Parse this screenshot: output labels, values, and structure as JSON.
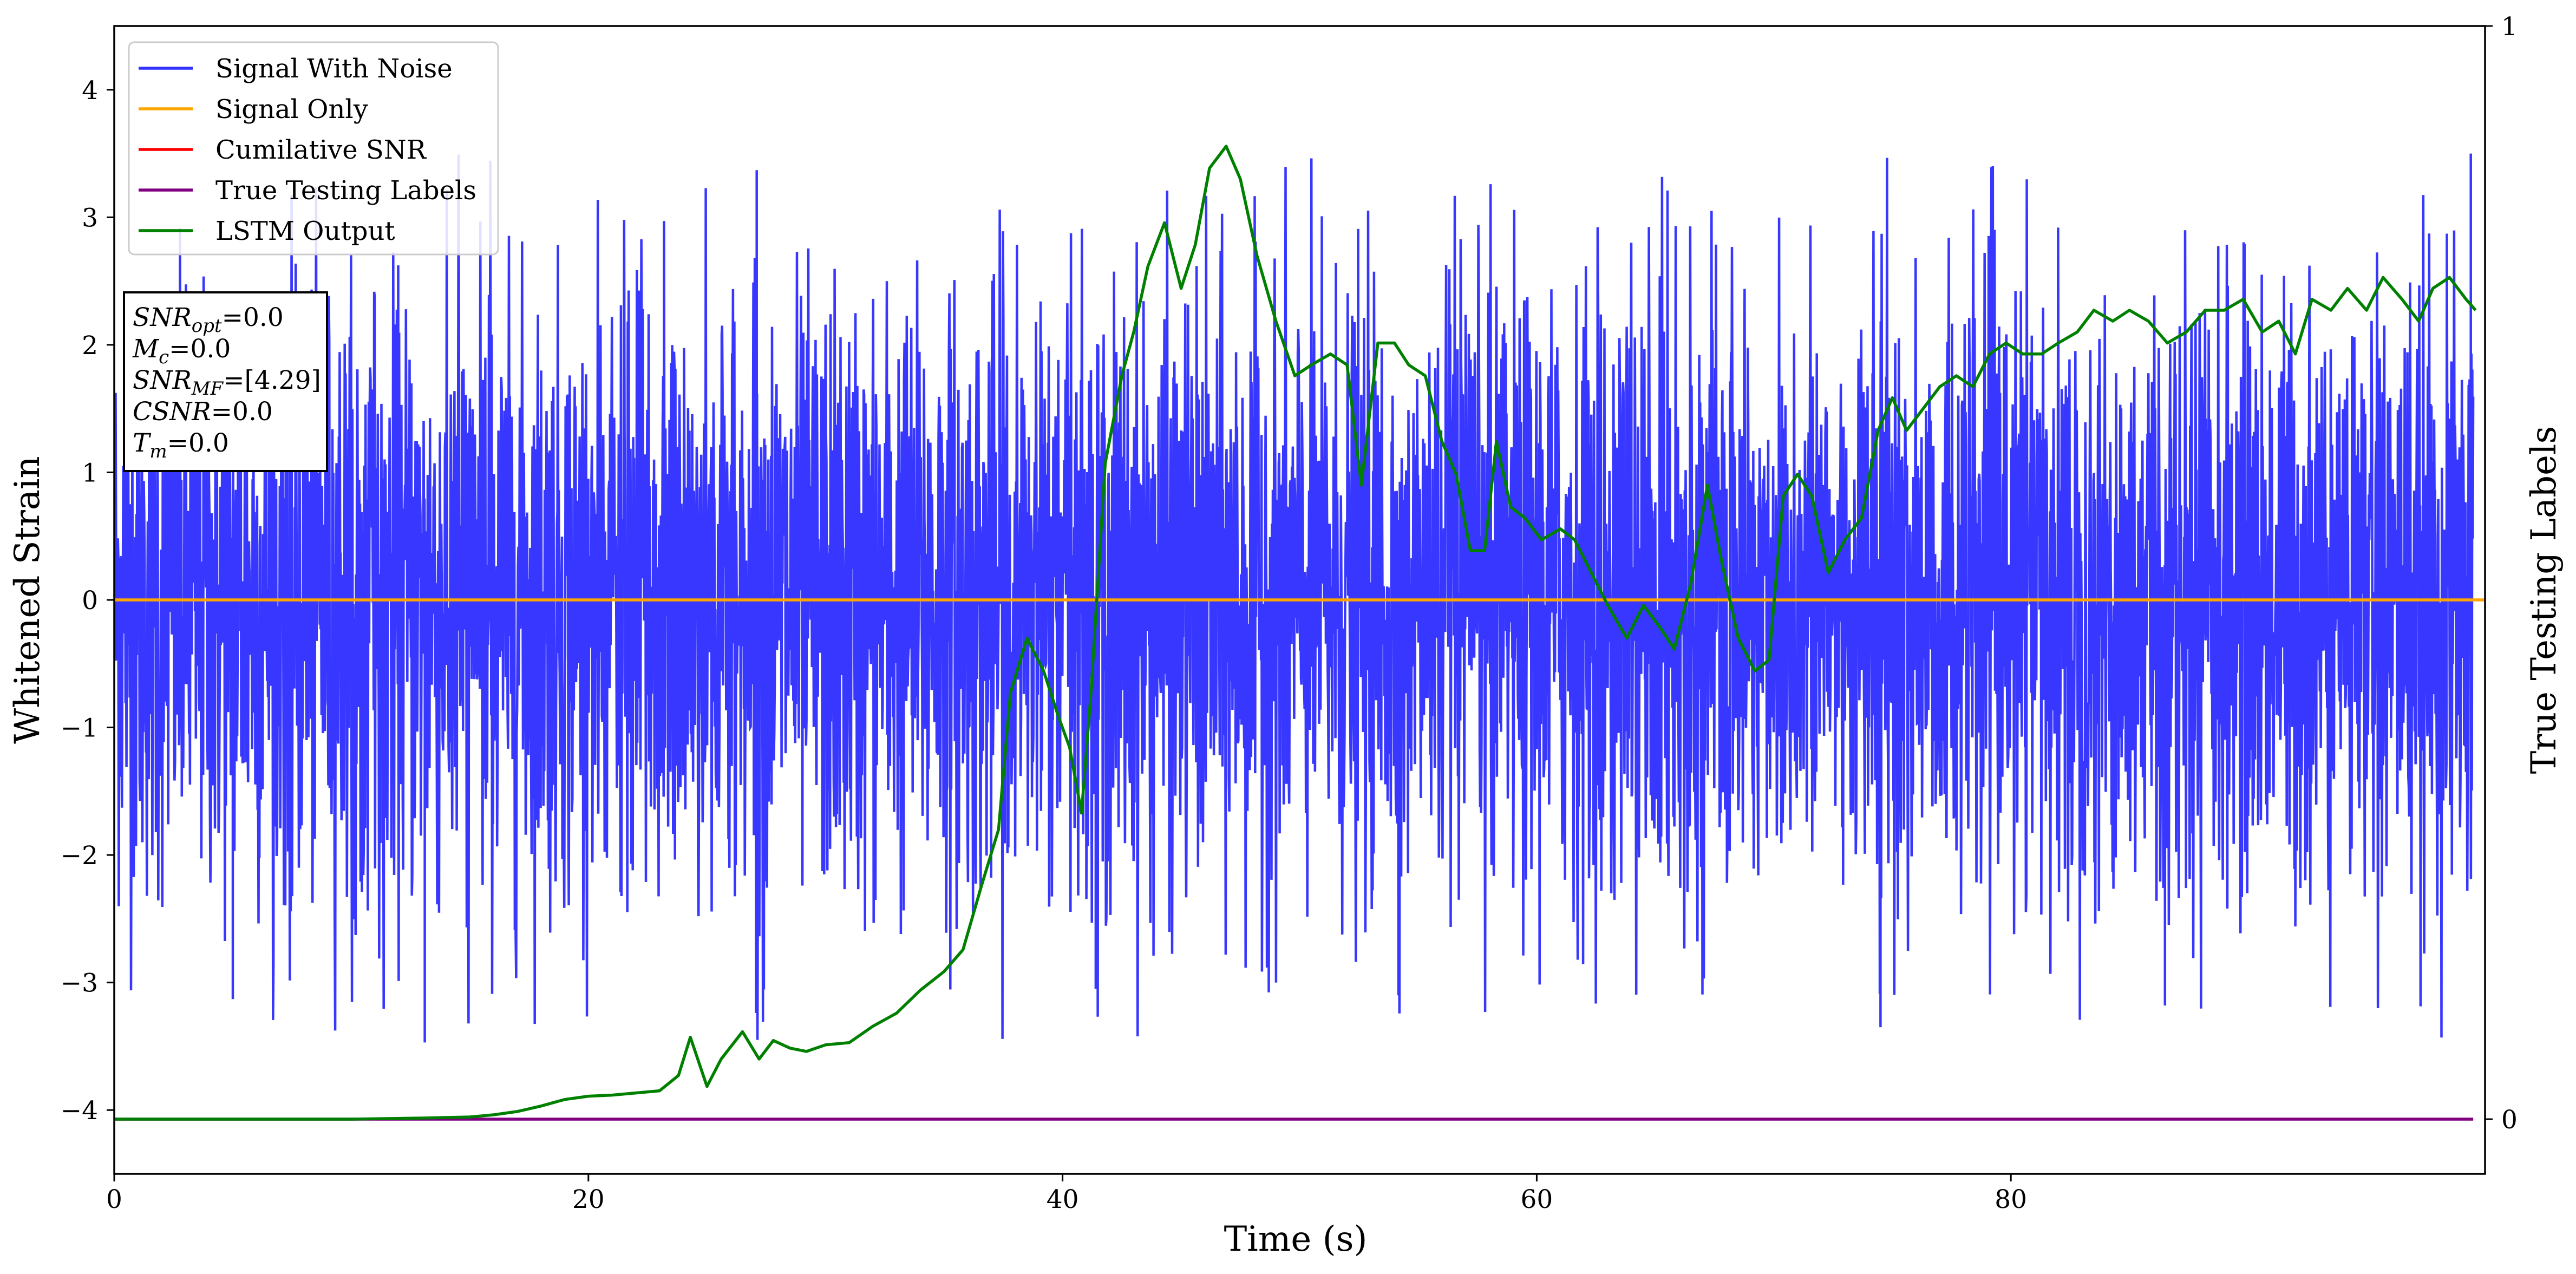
{
  "chart_data": {
    "type": "line",
    "xlabel": "Time (s)",
    "ylabel": "Whitened Strain",
    "y2label": "True Testing Labels",
    "xlim": [
      0,
      100
    ],
    "ylim": [
      -4.5,
      4.5
    ],
    "y2lim": [
      -0.05,
      1.0
    ],
    "x_ticks": [
      0,
      20,
      40,
      60,
      80
    ],
    "y_ticks": [
      -4,
      -3,
      -2,
      -1,
      0,
      1,
      2,
      3,
      4
    ],
    "y_tick_labels": [
      "−4",
      "−3",
      "−2",
      "−1",
      "0",
      "1",
      "2",
      "3",
      "4"
    ],
    "y2_ticks": [
      0,
      1
    ],
    "grid": false,
    "legend_position": "top-left",
    "series": [
      {
        "name": "Signal With Noise",
        "color": "#3333ff",
        "axis": "left",
        "description_values": "dense noise band between about -1.4 and 1.4 with spikes to about -3.5 and 3.5",
        "envelope": {
          "typical_min": -1.4,
          "typical_max": 1.4,
          "extreme_min": -3.47,
          "extreme_max": 3.5
        }
      },
      {
        "name": "Signal Only",
        "color": "#ffa500",
        "axis": "left",
        "x": [
          0,
          100
        ],
        "values": [
          0,
          0
        ]
      },
      {
        "name": "Cumilative SNR",
        "color": "#ff0000",
        "axis": "left",
        "x": [],
        "values": []
      },
      {
        "name": "True Testing Labels",
        "color": "#800080",
        "axis": "right",
        "x": [
          0,
          99.5
        ],
        "values": [
          0,
          0
        ]
      },
      {
        "name": "LSTM Output",
        "color": "#008000",
        "axis": "right",
        "x": [
          0,
          5,
          10,
          13,
          15,
          16,
          17,
          18,
          19,
          20,
          21,
          22,
          23,
          23.8,
          24.3,
          25.0,
          25.6,
          26.5,
          27.2,
          27.8,
          28.5,
          29.2,
          30,
          31,
          32,
          33,
          34,
          35,
          35.8,
          36.6,
          37.3,
          37.8,
          38.5,
          39.2,
          39.8,
          40.3,
          40.8,
          41.2,
          41.8,
          42.5,
          43.0,
          43.6,
          44.3,
          45.0,
          45.6,
          46.2,
          46.9,
          47.5,
          48.2,
          49.0,
          49.8,
          50.5,
          51.3,
          52.0,
          52.6,
          53.3,
          54.0,
          54.6,
          55.3,
          56.0,
          56.6,
          57.2,
          57.8,
          58.3,
          58.9,
          59.5,
          60.2,
          61.0,
          61.6,
          62.3,
          63.0,
          63.8,
          64.5,
          65.2,
          65.8,
          66.5,
          67.2,
          67.8,
          68.5,
          69.2,
          69.8,
          70.4,
          71.0,
          71.6,
          72.3,
          73.0,
          73.7,
          74.4,
          75.0,
          75.6,
          76.3,
          77.0,
          77.7,
          78.4,
          79.1,
          79.8,
          80.5,
          81.3,
          82.0,
          82.8,
          83.5,
          84.3,
          85.0,
          85.8,
          86.6,
          87.4,
          88.2,
          89.0,
          89.8,
          90.6,
          91.3,
          92.0,
          92.7,
          93.5,
          94.2,
          95.0,
          95.7,
          96.5,
          97.2,
          97.8,
          98.5,
          99.2,
          99.6
        ],
        "values": [
          0.0,
          0.0,
          0.0,
          0.001,
          0.002,
          0.004,
          0.007,
          0.012,
          0.018,
          0.021,
          0.022,
          0.024,
          0.026,
          0.04,
          0.075,
          0.03,
          0.055,
          0.08,
          0.055,
          0.072,
          0.065,
          0.062,
          0.068,
          0.07,
          0.085,
          0.097,
          0.118,
          0.135,
          0.155,
          0.215,
          0.265,
          0.39,
          0.44,
          0.41,
          0.37,
          0.34,
          0.28,
          0.39,
          0.6,
          0.68,
          0.72,
          0.78,
          0.82,
          0.76,
          0.8,
          0.87,
          0.89,
          0.86,
          0.79,
          0.73,
          0.68,
          0.69,
          0.7,
          0.69,
          0.58,
          0.71,
          0.71,
          0.69,
          0.68,
          0.62,
          0.59,
          0.52,
          0.52,
          0.62,
          0.56,
          0.55,
          0.53,
          0.54,
          0.53,
          0.5,
          0.47,
          0.44,
          0.47,
          0.45,
          0.43,
          0.49,
          0.58,
          0.51,
          0.44,
          0.41,
          0.42,
          0.57,
          0.59,
          0.57,
          0.5,
          0.53,
          0.55,
          0.63,
          0.66,
          0.63,
          0.65,
          0.67,
          0.68,
          0.67,
          0.7,
          0.71,
          0.7,
          0.7,
          0.71,
          0.72,
          0.74,
          0.73,
          0.74,
          0.73,
          0.71,
          0.72,
          0.74,
          0.74,
          0.75,
          0.72,
          0.73,
          0.7,
          0.75,
          0.74,
          0.76,
          0.74,
          0.77,
          0.75,
          0.73,
          0.76,
          0.77,
          0.75,
          0.74
        ]
      }
    ],
    "annotations": [
      {
        "base": "SNR",
        "sub": "opt",
        "value": "=0.0"
      },
      {
        "base": "M",
        "sub": "c",
        "value": "=0.0"
      },
      {
        "base": "SNR",
        "sub": "MF",
        "value": "=[4.29]"
      },
      {
        "base": "CSNR",
        "sub": "",
        "value": "=0.0"
      },
      {
        "base": "T",
        "sub": "m",
        "value": "=0.0"
      }
    ]
  }
}
